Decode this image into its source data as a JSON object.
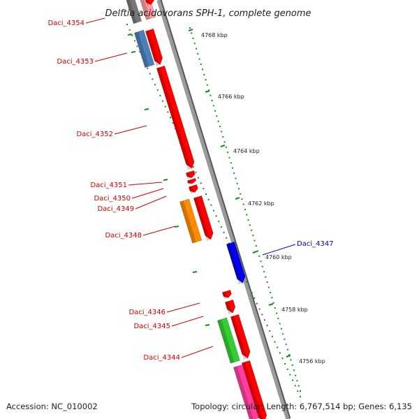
{
  "title": "Delftia acidovorans SPH-1, complete genome",
  "footer": {
    "accession": "Accession: NC_010002",
    "summary": "Topology: circular; Length: 6,767,514 bp; Genes: 6,135"
  },
  "colors": {
    "forward_gene": "#ff0000",
    "reverse_gene": "#0000ee",
    "backbone": "#8a8a8a",
    "tick": "#1a8a1a",
    "forward_label": "#cc0000",
    "reverse_label": "#0000cc"
  },
  "ticks": [
    {
      "label": "4768 kbp",
      "kbp": 4768
    },
    {
      "label": "4766 kbp",
      "kbp": 4766
    },
    {
      "label": "4764 kbp",
      "kbp": 4764
    },
    {
      "label": "4762 kbp",
      "kbp": 4762
    },
    {
      "label": "4760 kbp",
      "kbp": 4760
    },
    {
      "label": "4758 kbp",
      "kbp": 4758
    },
    {
      "label": "4756 kbp",
      "kbp": 4756
    }
  ],
  "genes": [
    {
      "id": "Daci_4354",
      "color": "#ff0000",
      "strand": "+"
    },
    {
      "id": "Daci_4353",
      "color": "#ff0000",
      "strand": "+"
    },
    {
      "id": "Daci_4352",
      "color": "#ff0000",
      "strand": "+"
    },
    {
      "id": "Daci_4351",
      "color": "#ff0000",
      "strand": "+"
    },
    {
      "id": "Daci_4350",
      "color": "#ff0000",
      "strand": "+"
    },
    {
      "id": "Daci_4349",
      "color": "#ff0000",
      "strand": "+"
    },
    {
      "id": "Daci_4348",
      "color": "#ff0000",
      "strand": "+"
    },
    {
      "id": "Daci_4347",
      "color": "#0000ee",
      "strand": "-"
    },
    {
      "id": "Daci_4346",
      "color": "#ff0000",
      "strand": "+"
    },
    {
      "id": "Daci_4345",
      "color": "#ff0000",
      "strand": "+"
    },
    {
      "id": "Daci_4344",
      "color": "#ff0000",
      "strand": "+"
    }
  ],
  "cog_boxes": [
    {
      "gene": "Daci_4354",
      "color": "#ff9aa0"
    },
    {
      "gene": "Daci_4353",
      "color": "#4a7fb8"
    },
    {
      "gene": "Daci_4348",
      "color": "#ff8c00"
    },
    {
      "gene": "Daci_4344",
      "color": "#33cc33"
    },
    {
      "gene": "next",
      "color": "#ff3fa0"
    }
  ]
}
